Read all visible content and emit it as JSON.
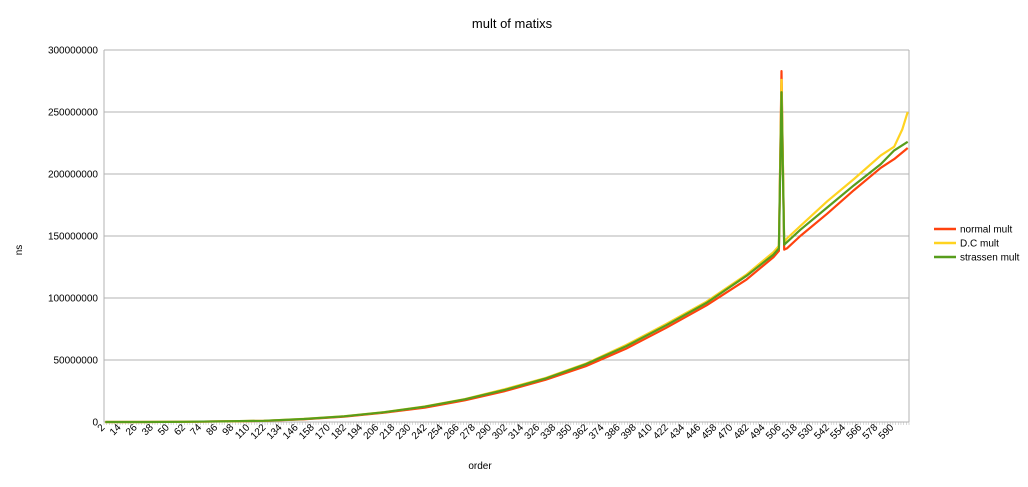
{
  "chart_data": {
    "type": "line",
    "title": "mult of matixs",
    "xlabel": "order",
    "ylabel": "ns",
    "ylim": [
      0,
      300000000
    ],
    "y_ticks": [
      0,
      50000000,
      100000000,
      150000000,
      200000000,
      250000000,
      300000000
    ],
    "y_tick_labels": [
      "0",
      "50000000",
      "100000000",
      "150000000",
      "200000000",
      "250000000",
      "300000000"
    ],
    "x_first": 2,
    "x_last": 600,
    "x_step": 2,
    "x_tick_labels": [
      "2",
      "14",
      "26",
      "38",
      "50",
      "62",
      "74",
      "86",
      "98",
      "110",
      "122",
      "134",
      "146",
      "158",
      "170",
      "182",
      "194",
      "206",
      "218",
      "230",
      "242",
      "254",
      "266",
      "278",
      "290",
      "302",
      "314",
      "326",
      "338",
      "350",
      "362",
      "374",
      "386",
      "398",
      "410",
      "422",
      "434",
      "446",
      "458",
      "470",
      "482",
      "494",
      "506",
      "518",
      "530",
      "542",
      "554",
      "566",
      "578",
      "590"
    ],
    "grid": true,
    "legend_position": "right",
    "series": [
      {
        "name": "normal mult",
        "color": "#ff420e",
        "x": [
          2,
          30,
          60,
          90,
          120,
          150,
          180,
          210,
          240,
          270,
          300,
          330,
          360,
          390,
          420,
          450,
          480,
          500,
          504,
          506,
          508,
          510,
          520,
          540,
          560,
          580,
          590,
          600
        ],
        "values": [
          0,
          10000,
          150000,
          500000,
          900000,
          2200000,
          4300000,
          7500000,
          11500000,
          17500000,
          25000000,
          34000000,
          45000000,
          59000000,
          76000000,
          94000000,
          115000000,
          133000000,
          138000000,
          283000000,
          139000000,
          140000000,
          150000000,
          168000000,
          187000000,
          205000000,
          212000000,
          221000000
        ]
      },
      {
        "name": "D.C mult",
        "color": "#ffd320",
        "x": [
          2,
          30,
          60,
          90,
          120,
          150,
          180,
          210,
          240,
          270,
          300,
          330,
          360,
          390,
          420,
          450,
          480,
          500,
          504,
          506,
          508,
          510,
          520,
          540,
          560,
          580,
          590,
          596,
          600
        ],
        "values": [
          0,
          12000,
          170000,
          560000,
          1000000,
          2500000,
          4700000,
          8000000,
          12500000,
          18500000,
          26500000,
          35500000,
          47000000,
          62000000,
          79000000,
          97000000,
          119000000,
          137000000,
          142000000,
          276000000,
          145000000,
          148000000,
          158000000,
          178000000,
          196000000,
          215000000,
          222000000,
          236000000,
          250000000
        ]
      },
      {
        "name": "strassen mult",
        "color": "#579d1c",
        "x": [
          2,
          30,
          60,
          90,
          120,
          150,
          180,
          210,
          240,
          270,
          300,
          330,
          360,
          390,
          420,
          450,
          480,
          500,
          504,
          506,
          508,
          510,
          520,
          540,
          560,
          580,
          590,
          600
        ],
        "values": [
          0,
          11000,
          160000,
          530000,
          950000,
          2400000,
          4600000,
          7900000,
          12300000,
          18300000,
          26000000,
          35000000,
          46500000,
          61000000,
          78000000,
          96000000,
          118000000,
          135000000,
          140000000,
          266000000,
          143000000,
          145000000,
          155000000,
          173000000,
          191000000,
          208000000,
          219000000,
          226000000
        ]
      }
    ]
  }
}
